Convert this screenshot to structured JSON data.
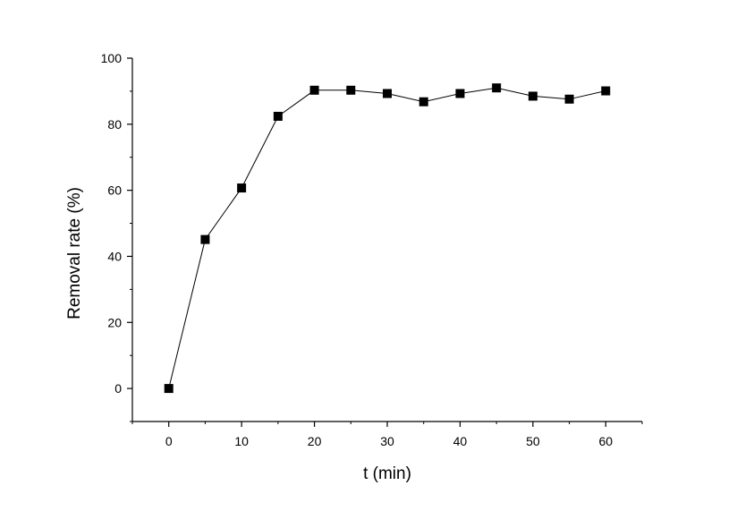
{
  "chart_data": {
    "type": "line",
    "title": "",
    "xlabel": "t (min)",
    "ylabel": "Removal rate (%)",
    "xlim": [
      -5,
      65
    ],
    "ylim": [
      -10,
      100
    ],
    "x_ticks": [
      0,
      10,
      20,
      30,
      40,
      50,
      60
    ],
    "y_ticks": [
      0,
      20,
      40,
      60,
      80,
      100
    ],
    "grid": false,
    "legend": "none",
    "marker": "square",
    "series": [
      {
        "x": [
          0,
          5,
          10,
          15,
          20,
          25,
          30,
          35,
          40,
          45,
          50,
          55,
          60
        ],
        "values": [
          0,
          45.1,
          60.7,
          82.4,
          90.3,
          90.3,
          89.3,
          86.8,
          89.3,
          91.0,
          88.5,
          87.6,
          90.1
        ],
        "color": "#000000"
      }
    ]
  }
}
